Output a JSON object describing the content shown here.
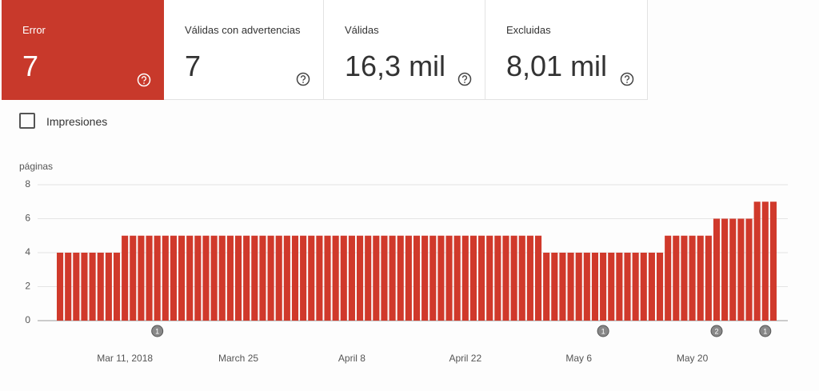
{
  "cards": [
    {
      "label": "Error",
      "value": "7",
      "selected": true
    },
    {
      "label": "Válidas con advertencias",
      "value": "7",
      "selected": false
    },
    {
      "label": "Válidas",
      "value": "16,3 mil",
      "selected": false
    },
    {
      "label": "Excluidas",
      "value": "8,01 mil",
      "selected": false
    }
  ],
  "checkbox": {
    "label": "Impresiones",
    "checked": false
  },
  "chart_data": {
    "type": "bar",
    "y_label": "páginas",
    "color": "#d0392b",
    "categories": [
      null,
      null,
      null,
      null,
      null,
      null,
      null,
      null,
      "Mar 11, 2018",
      null,
      null,
      null,
      null,
      null,
      null,
      null,
      null,
      null,
      null,
      null,
      null,
      null,
      "March 25",
      null,
      null,
      null,
      null,
      null,
      null,
      null,
      null,
      null,
      null,
      null,
      null,
      null,
      "April 8",
      null,
      null,
      null,
      null,
      null,
      null,
      null,
      null,
      null,
      null,
      null,
      null,
      null,
      "April 22",
      null,
      null,
      null,
      null,
      null,
      null,
      null,
      null,
      null,
      null,
      null,
      null,
      null,
      "May 6",
      null,
      null,
      null,
      null,
      null,
      null,
      null,
      null,
      null,
      null,
      null,
      null,
      null,
      "May 20",
      null,
      null,
      null,
      null,
      null,
      null,
      null,
      null,
      null,
      null
    ],
    "values": [
      4,
      4,
      4,
      4,
      4,
      4,
      4,
      4,
      5,
      5,
      5,
      5,
      5,
      5,
      5,
      5,
      5,
      5,
      5,
      5,
      5,
      5,
      5,
      5,
      5,
      5,
      5,
      5,
      5,
      5,
      5,
      5,
      5,
      5,
      5,
      5,
      5,
      5,
      5,
      5,
      5,
      5,
      5,
      5,
      5,
      5,
      5,
      5,
      5,
      5,
      5,
      5,
      5,
      5,
      5,
      5,
      5,
      5,
      5,
      5,
      4,
      4,
      4,
      4,
      4,
      4,
      4,
      4,
      4,
      4,
      4,
      4,
      4,
      4,
      4,
      5,
      5,
      5,
      5,
      5,
      5,
      6,
      6,
      6,
      6,
      6,
      7,
      7,
      7
    ],
    "ylim": [
      0,
      8
    ],
    "yticks": [
      0,
      2,
      4,
      6,
      8
    ],
    "grid": true,
    "annotations": [
      {
        "x": 12,
        "label": "1"
      },
      {
        "x": 67,
        "label": "1"
      },
      {
        "x": 81,
        "label": "2"
      },
      {
        "x": 87,
        "label": "1"
      }
    ]
  }
}
